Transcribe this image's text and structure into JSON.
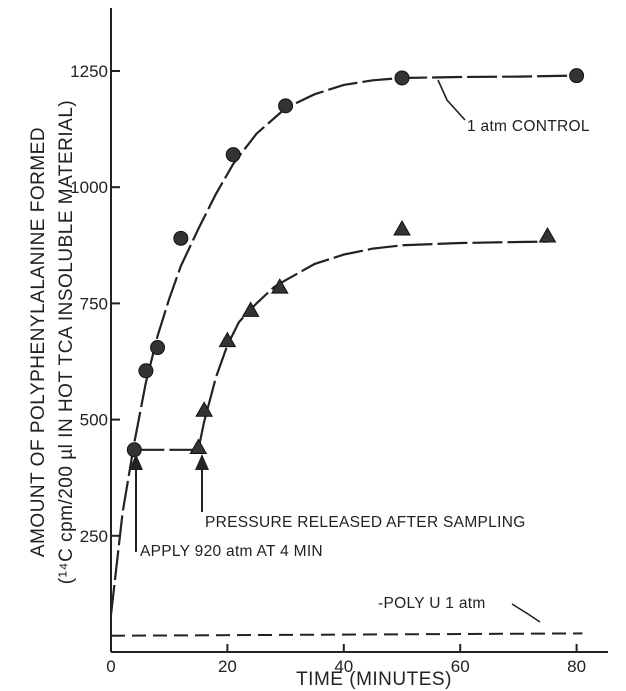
{
  "chart_data": {
    "type": "scatter",
    "xlabel": "TIME (MINUTES)",
    "ylabel_line1": "AMOUNT OF POLYPHENYLALANINE FORMED",
    "ylabel_line2": "(¹⁴C cpm/200 µl IN HOT TCA INSOLUBLE MATERIAL)",
    "xlim": [
      0,
      85
    ],
    "ylim": [
      0,
      1375
    ],
    "x_ticks": [
      0,
      20,
      40,
      60,
      80
    ],
    "y_ticks": [
      250,
      500,
      750,
      1000,
      1250
    ],
    "y_tick_labels": [
      "250",
      "500",
      "750",
      "1000",
      "1250"
    ],
    "grid": false,
    "series": [
      {
        "name": "1 atm CONTROL",
        "marker": "circle",
        "x": [
          4,
          6,
          8,
          12,
          21,
          30,
          50,
          80
        ],
        "y": [
          435,
          605,
          655,
          890,
          1070,
          1175,
          1235,
          1240
        ],
        "curve_x": [
          0,
          2,
          4,
          6,
          8,
          10,
          12,
          15,
          18,
          21,
          25,
          30,
          35,
          40,
          45,
          50,
          60,
          70,
          80
        ],
        "curve_y": [
          80,
          300,
          450,
          580,
          680,
          760,
          830,
          910,
          985,
          1050,
          1115,
          1170,
          1200,
          1220,
          1230,
          1235,
          1237,
          1238,
          1240
        ]
      },
      {
        "name": "PRESSURE RELEASED AFTER SAMPLING",
        "marker": "triangle",
        "x": [
          15,
          16,
          20,
          24,
          29,
          50,
          75
        ],
        "y": [
          440,
          520,
          670,
          735,
          785,
          910,
          895
        ],
        "curve_x": [
          4,
          15,
          16,
          18,
          20,
          22,
          25,
          28,
          30,
          35,
          40,
          45,
          50,
          60,
          70,
          75
        ],
        "curve_y": [
          435,
          435,
          495,
          590,
          660,
          710,
          750,
          785,
          800,
          835,
          855,
          868,
          875,
          880,
          882,
          883
        ]
      },
      {
        "name": "POLY U 1 atm",
        "marker": "none",
        "x": [
          0,
          81
        ],
        "y": [
          35,
          40
        ]
      }
    ],
    "annotations": {
      "control_label": "1 atm CONTROL",
      "pressure_label": "PRESSURE RELEASED AFTER SAMPLING",
      "apply_label": "APPLY 920 atm AT 4 MIN",
      "polyu_label": "-POLY U 1 atm"
    }
  }
}
